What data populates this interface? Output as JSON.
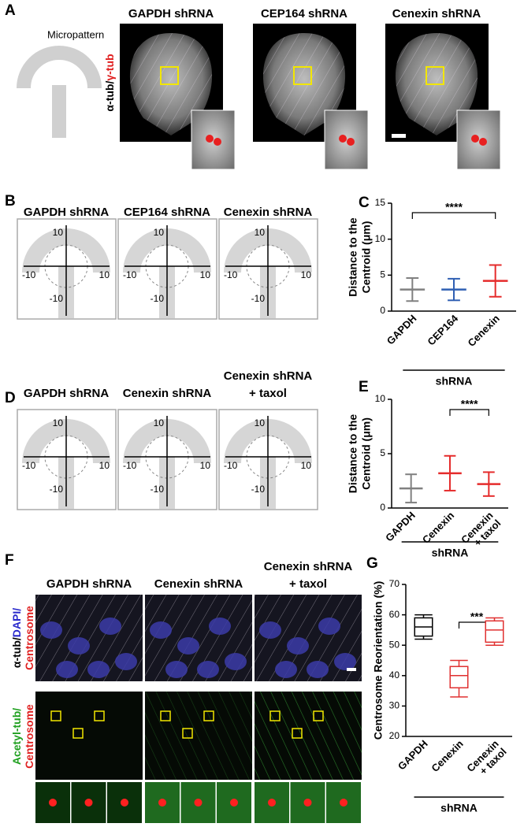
{
  "figure": {
    "A": {
      "label": "A",
      "micropattern": "Micropattern",
      "stain": [
        "α-tub/",
        "γ-tub"
      ],
      "titles": [
        "GAPDH shRNA",
        "CEP164 shRNA",
        "Cenexin shRNA"
      ]
    },
    "B": {
      "label": "B",
      "plots": [
        {
          "title": [
            "GAPDH shRNA"
          ],
          "ticks": {
            "top": 10,
            "left": -10,
            "right": 10,
            "bottom": -10
          }
        },
        {
          "title": [
            "CEP164 shRNA"
          ],
          "ticks": {
            "top": 10,
            "left": -10,
            "right": 10,
            "bottom": -10
          }
        },
        {
          "title": [
            "Cenexin shRNA"
          ],
          "ticks": {
            "top": 10,
            "left": -10,
            "right": 10,
            "bottom": -10
          }
        }
      ]
    },
    "D": {
      "label": "D",
      "plots": [
        {
          "title": [
            "GAPDH shRNA"
          ],
          "ticks": {
            "top": 10,
            "left": -10,
            "right": 10,
            "bottom": -10
          }
        },
        {
          "title": [
            "Cenexin shRNA"
          ],
          "ticks": {
            "top": 10,
            "left": -10,
            "right": 10,
            "bottom": -10
          }
        },
        {
          "title": [
            "Cenexin shRNA",
            "+ taxol"
          ],
          "ticks": {
            "top": 10,
            "left": -10,
            "right": 10,
            "bottom": -10
          }
        }
      ]
    },
    "F": {
      "label": "F",
      "titles": [
        [
          "GAPDH shRNA"
        ],
        [
          "Cenexin shRNA"
        ],
        [
          "Cenexin shRNA",
          "+ taxol"
        ]
      ],
      "row1_stain": [
        "α-tub/",
        "DAPI/",
        "Centrosome"
      ],
      "row2_stain": [
        "Acetyl-tub/",
        "Centrosome"
      ]
    }
  },
  "chart_data": [
    {
      "type": "errorbar",
      "panel_label": "C",
      "y_label": [
        "Distance to the",
        "Centroid (μm)"
      ],
      "categories": [
        [
          "GAPDH"
        ],
        [
          "CEP164"
        ],
        [
          "Cenexin"
        ]
      ],
      "group_label": "shRNA",
      "values": [
        3.0,
        3.0,
        4.2
      ],
      "errors": [
        1.6,
        1.5,
        2.2
      ],
      "colors": [
        "#808080",
        "#2f5fb3",
        "#e52b2b"
      ],
      "ylim": [
        0,
        15
      ],
      "yticks": [
        0,
        5,
        10,
        15
      ],
      "significance": {
        "label": "****",
        "between": [
          0,
          2
        ]
      }
    },
    {
      "type": "errorbar",
      "panel_label": "E",
      "y_label": [
        "Distance to the",
        "Centroid (μm)"
      ],
      "categories": [
        [
          "GAPDH"
        ],
        [
          "Cenexin"
        ],
        [
          "Cenexin",
          "+ taxol"
        ]
      ],
      "group_label": "shRNA",
      "values": [
        1.8,
        3.2,
        2.2
      ],
      "errors": [
        1.3,
        1.6,
        1.1
      ],
      "colors": [
        "#808080",
        "#e52b2b",
        "#e52b2b"
      ],
      "ylim": [
        0,
        10
      ],
      "yticks": [
        0,
        5,
        10
      ],
      "significance": {
        "label": "****",
        "between": [
          1,
          2
        ]
      }
    },
    {
      "type": "box",
      "panel_label": "G",
      "y_label": [
        "Centrosome Reorientation (%)"
      ],
      "categories": [
        [
          "GAPDH"
        ],
        [
          "Cenexin"
        ],
        [
          "Cenexin",
          "+ taxol"
        ]
      ],
      "group_label": "shRNA",
      "stats": [
        {
          "min": 52,
          "q1": 53,
          "median": 56,
          "q3": 59,
          "max": 60
        },
        {
          "min": 33,
          "q1": 36,
          "median": 40,
          "q3": 43,
          "max": 45
        },
        {
          "min": 50,
          "q1": 51,
          "median": 55,
          "q3": 58,
          "max": 59
        }
      ],
      "colors": [
        "#000000",
        "#e03030",
        "#e03030"
      ],
      "ylim": [
        20,
        70
      ],
      "yticks": [
        20,
        30,
        40,
        50,
        60,
        70
      ],
      "significance": {
        "label": "***",
        "between": [
          1,
          2
        ]
      }
    }
  ]
}
